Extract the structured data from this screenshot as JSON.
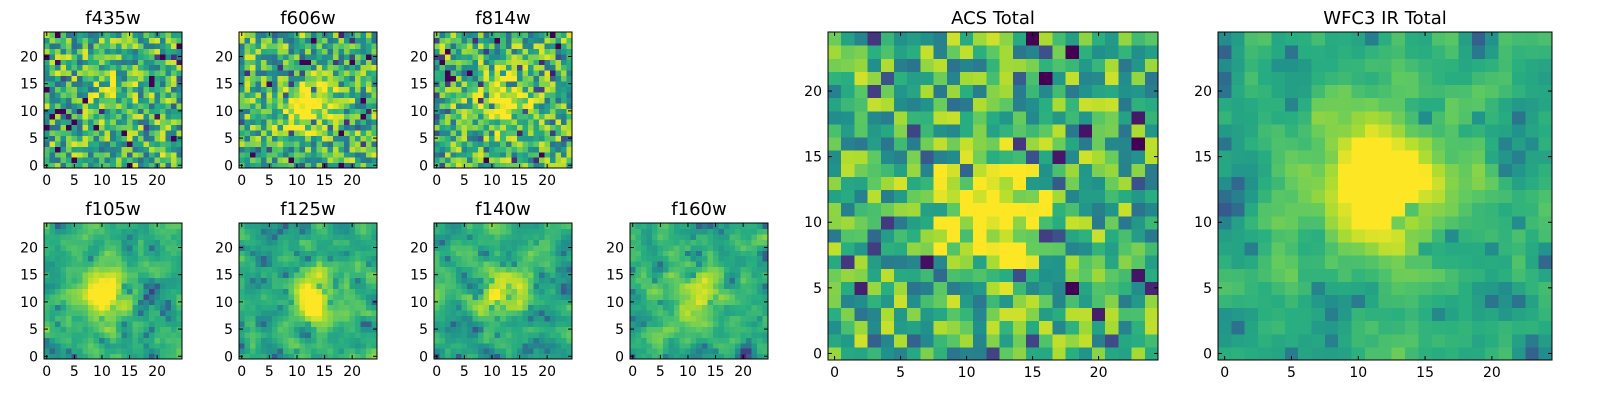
{
  "figure": {
    "background": "#ffffff"
  },
  "chart_data": [
    {
      "type": "heatmap",
      "title": "f435w",
      "colormap": "viridis",
      "grid_size": [
        25,
        25
      ],
      "xlim": [
        -0.5,
        24.5
      ],
      "ylim": [
        -0.5,
        24.5
      ],
      "xticks": [
        "0",
        "5",
        "10",
        "15",
        "20"
      ],
      "yticks": [
        "0",
        "5",
        "10",
        "15",
        "20"
      ],
      "seed": 11,
      "noise": 0.62,
      "blob": 0.1,
      "blob_center": [
        12,
        12
      ],
      "blob_radius": 3,
      "smooth": 0
    },
    {
      "type": "heatmap",
      "title": "f606w",
      "colormap": "viridis",
      "grid_size": [
        25,
        25
      ],
      "xlim": [
        -0.5,
        24.5
      ],
      "ylim": [
        -0.5,
        24.5
      ],
      "xticks": [
        "0",
        "5",
        "10",
        "15",
        "20"
      ],
      "yticks": [
        "0",
        "5",
        "10",
        "15",
        "20"
      ],
      "seed": 22,
      "noise": 0.6,
      "blob": 0.45,
      "blob_center": [
        12,
        11
      ],
      "blob_radius": 3,
      "smooth": 0
    },
    {
      "type": "heatmap",
      "title": "f814w",
      "colormap": "viridis",
      "grid_size": [
        25,
        25
      ],
      "xlim": [
        -0.5,
        24.5
      ],
      "ylim": [
        -0.5,
        24.5
      ],
      "xticks": [
        "0",
        "5",
        "10",
        "15",
        "20"
      ],
      "yticks": [
        "0",
        "5",
        "10",
        "15",
        "20"
      ],
      "seed": 33,
      "noise": 0.6,
      "blob": 0.45,
      "blob_center": [
        12,
        12
      ],
      "blob_radius": 3,
      "smooth": 0
    },
    {
      "type": "heatmap",
      "title": "f105w",
      "colormap": "viridis",
      "grid_size": [
        25,
        25
      ],
      "xlim": [
        -0.5,
        24.5
      ],
      "ylim": [
        -0.5,
        24.5
      ],
      "xticks": [
        "0",
        "5",
        "10",
        "15",
        "20"
      ],
      "yticks": [
        "0",
        "5",
        "10",
        "15",
        "20"
      ],
      "seed": 44,
      "noise": 0.55,
      "blob": 0.45,
      "blob_center": [
        11,
        11
      ],
      "blob_radius": 3.2,
      "smooth": 1
    },
    {
      "type": "heatmap",
      "title": "f125w",
      "colormap": "viridis",
      "grid_size": [
        25,
        25
      ],
      "xlim": [
        -0.5,
        24.5
      ],
      "ylim": [
        -0.5,
        24.5
      ],
      "xticks": [
        "0",
        "5",
        "10",
        "15",
        "20"
      ],
      "yticks": [
        "0",
        "5",
        "10",
        "15",
        "20"
      ],
      "seed": 55,
      "noise": 0.55,
      "blob": 0.4,
      "blob_center": [
        13,
        11
      ],
      "blob_radius": 3.2,
      "smooth": 1
    },
    {
      "type": "heatmap",
      "title": "f140w",
      "colormap": "viridis",
      "grid_size": [
        25,
        25
      ],
      "xlim": [
        -0.5,
        24.5
      ],
      "ylim": [
        -0.5,
        24.5
      ],
      "xticks": [
        "0",
        "5",
        "10",
        "15",
        "20"
      ],
      "yticks": [
        "0",
        "5",
        "10",
        "15",
        "20"
      ],
      "seed": 66,
      "noise": 0.58,
      "blob": 0.35,
      "blob_center": [
        12,
        12
      ],
      "blob_radius": 3.2,
      "smooth": 1
    },
    {
      "type": "heatmap",
      "title": "f160w",
      "colormap": "viridis",
      "grid_size": [
        25,
        25
      ],
      "xlim": [
        -0.5,
        24.5
      ],
      "ylim": [
        -0.5,
        24.5
      ],
      "xticks": [
        "0",
        "5",
        "10",
        "15",
        "20"
      ],
      "yticks": [
        "0",
        "5",
        "10",
        "15",
        "20"
      ],
      "seed": 77,
      "noise": 0.6,
      "blob": 0.3,
      "blob_center": [
        12,
        12
      ],
      "blob_radius": 3,
      "smooth": 1
    },
    {
      "type": "heatmap",
      "title": "ACS Total",
      "colormap": "viridis",
      "grid_size": [
        25,
        25
      ],
      "xlim": [
        -0.5,
        24.5
      ],
      "ylim": [
        -0.5,
        24.5
      ],
      "xticks": [
        "0",
        "5",
        "10",
        "15",
        "20"
      ],
      "yticks": [
        "0",
        "5",
        "10",
        "15",
        "20"
      ],
      "seed": 88,
      "noise": 0.55,
      "blob": 0.55,
      "blob_center": [
        12,
        11
      ],
      "blob_radius": 2.6,
      "smooth": 0
    },
    {
      "type": "heatmap",
      "title": "WFC3 IR Total",
      "colormap": "viridis",
      "grid_size": [
        25,
        25
      ],
      "xlim": [
        -0.5,
        24.5
      ],
      "ylim": [
        -0.5,
        24.5
      ],
      "xticks": [
        "0",
        "5",
        "10",
        "15",
        "20"
      ],
      "yticks": [
        "0",
        "5",
        "10",
        "15",
        "20"
      ],
      "seed": 99,
      "noise": 0.45,
      "blob": 0.55,
      "blob_center": [
        12,
        13
      ],
      "blob_radius": 3.4,
      "smooth": 1
    }
  ]
}
